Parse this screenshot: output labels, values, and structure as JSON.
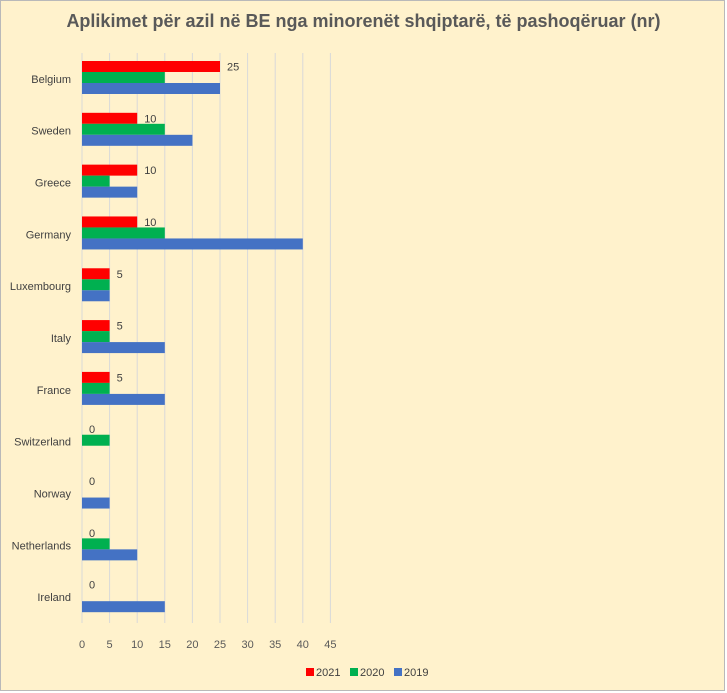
{
  "chart_data": {
    "type": "bar",
    "orientation": "horizontal",
    "title": "Aplikimet për azil në BE nga minorenët shqiptarë, të pashoqëruar (nr)",
    "categories": [
      "Belgium",
      "Sweden",
      "Greece",
      "Germany",
      "Luxembourg",
      "Italy",
      "France",
      "Switzerland",
      "Norway",
      "Netherlands",
      "Ireland"
    ],
    "series": [
      {
        "name": "2021",
        "color": "#ff0000",
        "values": [
          25,
          10,
          10,
          10,
          5,
          5,
          5,
          0,
          0,
          0,
          0
        ],
        "data_labels": true
      },
      {
        "name": "2020",
        "color": "#00b050",
        "values": [
          15,
          15,
          5,
          15,
          5,
          5,
          5,
          5,
          0,
          5,
          0
        ],
        "data_labels": false
      },
      {
        "name": "2019",
        "color": "#4472c4",
        "values": [
          25,
          20,
          10,
          40,
          5,
          15,
          15,
          0,
          5,
          10,
          15
        ],
        "data_labels": false
      }
    ],
    "xlim": [
      0,
      45
    ],
    "xticks": [
      0,
      5,
      10,
      15,
      20,
      25,
      30,
      35,
      40,
      45
    ],
    "grid": "vertical",
    "legend": "bottom",
    "xlabel": "",
    "ylabel": ""
  }
}
